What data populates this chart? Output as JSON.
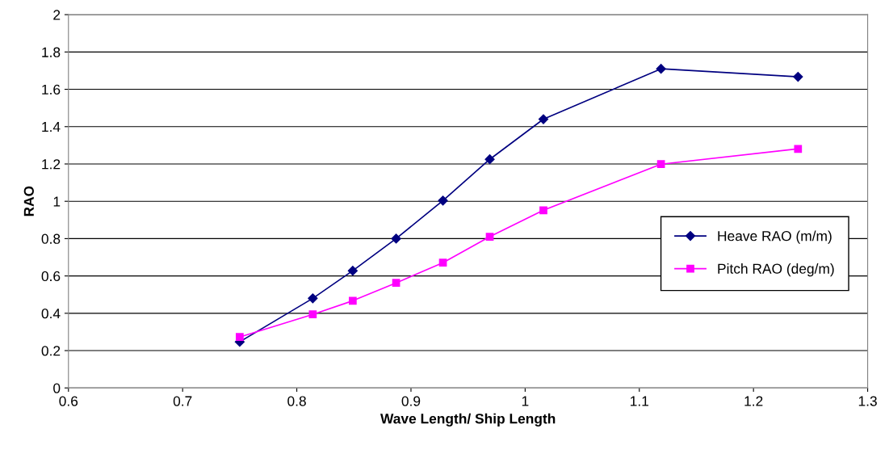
{
  "chart_data": {
    "type": "line",
    "xlabel": "Wave Length/ Ship Length",
    "ylabel": "RAO",
    "x": [
      0.75,
      0.814,
      0.849,
      0.887,
      0.928,
      0.969,
      1.016,
      1.119,
      1.239
    ],
    "series": [
      {
        "name": "Heave RAO (m/m)",
        "color": "#000080",
        "marker": "diamond",
        "values": [
          0.247,
          0.48,
          0.628,
          0.8,
          1.004,
          1.225,
          1.44,
          1.71,
          1.667
        ]
      },
      {
        "name": "Pitch RAO (deg/m)",
        "color": "#ff00ff",
        "marker": "square",
        "values": [
          0.273,
          0.394,
          0.467,
          0.563,
          0.671,
          0.81,
          0.952,
          1.199,
          1.281
        ]
      }
    ],
    "xlim": [
      0.6,
      1.3
    ],
    "xticks": [
      0.6,
      0.7,
      0.8,
      0.9,
      1,
      1.1,
      1.2,
      1.3
    ],
    "ylim": [
      0,
      2
    ],
    "yticks": [
      0,
      0.2,
      0.4,
      0.6,
      0.8,
      1,
      1.2,
      1.4,
      1.6,
      1.8,
      2
    ],
    "grid": "y",
    "legend": "right",
    "line_style": "solid"
  }
}
